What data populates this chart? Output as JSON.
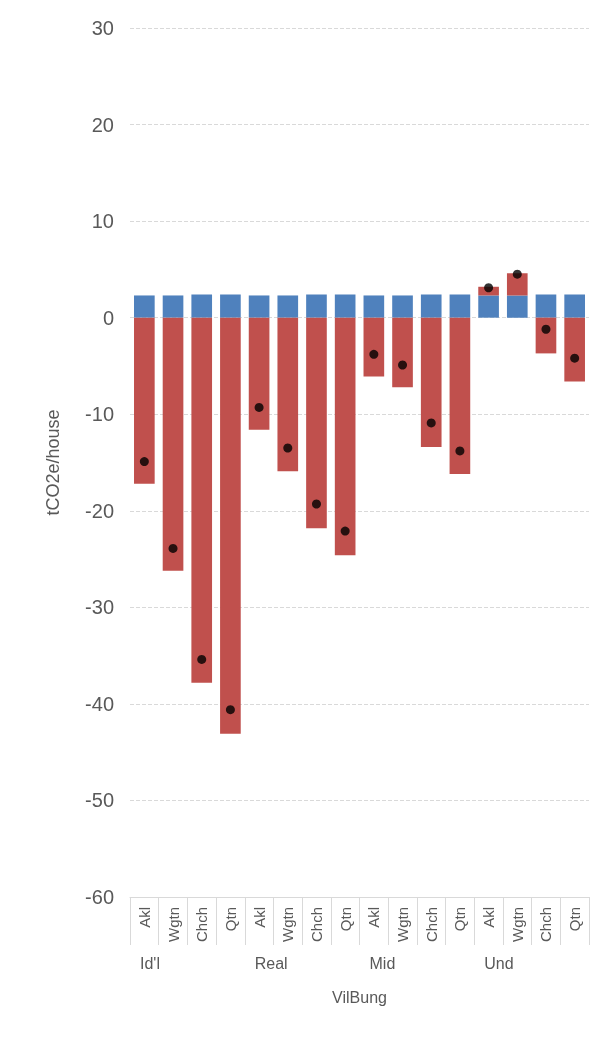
{
  "chart_data": {
    "type": "bar",
    "stacked": true,
    "ylabel": "tCO2e/house",
    "xlabel": "VilBung",
    "categories": [
      "Akl",
      "Wgtn",
      "Chch",
      "Qtn",
      "Akl",
      "Wgtn",
      "Chch",
      "Qtn",
      "Akl",
      "Wgtn",
      "Chch",
      "Qtn",
      "Akl",
      "Wgtn",
      "Chch",
      "Qtn"
    ],
    "annotations": [
      "Id'l",
      "Real",
      "Mid",
      "Und"
    ],
    "series": [
      {
        "color": "#4f81bd",
        "values": [
          2.3,
          2.3,
          2.4,
          2.4,
          2.3,
          2.3,
          2.4,
          2.4,
          2.3,
          2.3,
          2.4,
          2.4,
          2.3,
          2.3,
          2.4,
          2.4
        ]
      },
      {
        "color": "#c0504d",
        "values": [
          -17.2,
          -26.2,
          -37.8,
          -43.1,
          -11.6,
          -15.9,
          -21.8,
          -24.6,
          -6.1,
          -7.2,
          -13.4,
          -16.2,
          0.9,
          2.3,
          -3.7,
          -6.6
        ]
      },
      {
        "type": "scatter",
        "color": "#000000",
        "values": [
          -14.9,
          -23.9,
          -35.4,
          -40.6,
          -9.3,
          -13.5,
          -19.3,
          -22.1,
          -3.8,
          -4.9,
          -10.9,
          -13.8,
          3.1,
          4.5,
          -1.2,
          -4.2
        ]
      }
    ],
    "marker": "circle",
    "ylim": [
      -60,
      30
    ],
    "yticks": [
      -60,
      -50,
      -40,
      -30,
      -20,
      -10,
      0,
      10,
      20,
      30
    ],
    "grid": "y",
    "legend": false
  }
}
